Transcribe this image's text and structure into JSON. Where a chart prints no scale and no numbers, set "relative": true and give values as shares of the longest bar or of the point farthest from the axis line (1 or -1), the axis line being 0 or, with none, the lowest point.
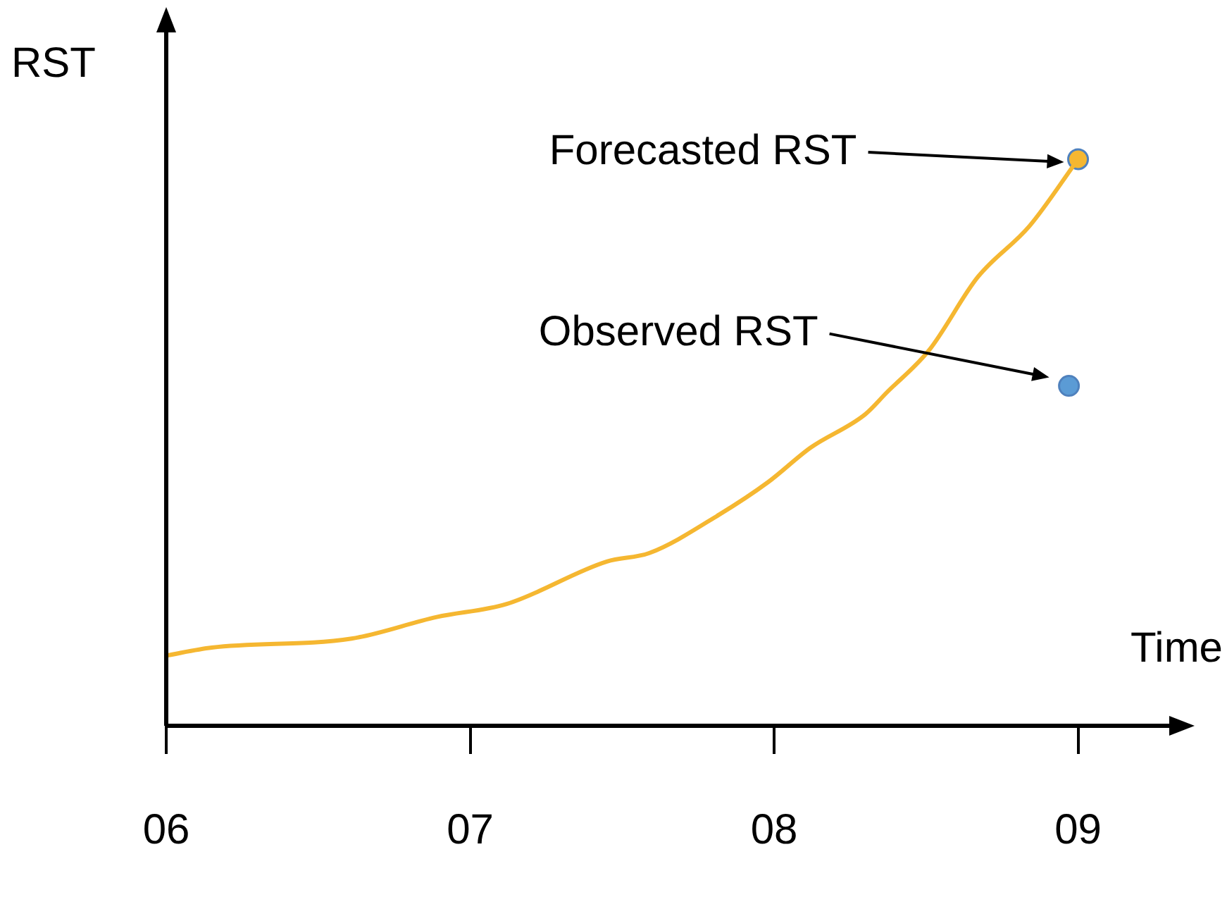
{
  "chart_data": {
    "type": "line",
    "relative": true,
    "xlabel": "Time",
    "ylabel": "RST",
    "xlim": [
      6,
      9.3
    ],
    "xticks": [
      {
        "value": 6,
        "label": "06"
      },
      {
        "value": 7,
        "label": "07"
      },
      {
        "value": 8,
        "label": "08"
      },
      {
        "value": 9,
        "label": "09"
      }
    ],
    "grid": false,
    "legend": false,
    "line_style": "solid",
    "series": [
      {
        "color": "#f5b731",
        "x": [
          6.0,
          6.15,
          6.61,
          6.89,
          7.12,
          7.45,
          7.59,
          7.82,
          7.98,
          8.12,
          8.3,
          8.37,
          8.51,
          8.67,
          8.84,
          9.0
        ],
        "values": [
          0.124,
          0.138,
          0.154,
          0.192,
          0.215,
          0.29,
          0.305,
          0.373,
          0.43,
          0.491,
          0.55,
          0.588,
          0.663,
          0.792,
          0.882,
          1.0
        ]
      },
      {
        "type": "scatter",
        "color": "#f5b731",
        "x": [
          9.0
        ],
        "values": [
          1.0
        ]
      },
      {
        "type": "scatter",
        "color": "#5b9bd5",
        "x": [
          8.97
        ],
        "values": [
          0.6
        ]
      }
    ],
    "annotations": [
      "Forecasted RST",
      "Observed RST"
    ]
  }
}
